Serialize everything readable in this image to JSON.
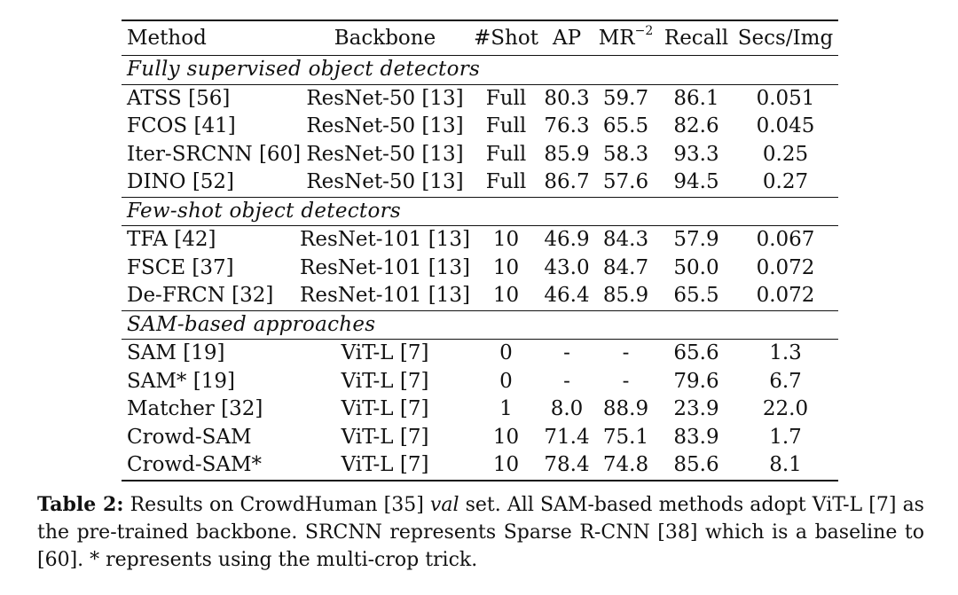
{
  "table": {
    "headers": {
      "method": "Method",
      "backbone": "Backbone",
      "shot": "#Shot",
      "ap": "AP",
      "mr_base": "MR",
      "mr_sup": "−2",
      "recall": "Recall",
      "secs": "Secs/Img"
    },
    "sections": [
      {
        "title": "Fully supervised object detectors",
        "rows": [
          {
            "method": "ATSS [56]",
            "backbone": "ResNet-50 [13]",
            "shot": "Full",
            "ap": "80.3",
            "mr": "59.7",
            "recall": "86.1",
            "secs": "0.051"
          },
          {
            "method": "FCOS [41]",
            "backbone": "ResNet-50 [13]",
            "shot": "Full",
            "ap": "76.3",
            "mr": "65.5",
            "recall": "82.6",
            "secs": "0.045"
          },
          {
            "method": "Iter-SRCNN [60]",
            "backbone": "ResNet-50 [13]",
            "shot": "Full",
            "ap": "85.9",
            "mr": "58.3",
            "recall": "93.3",
            "secs": "0.25"
          },
          {
            "method": "DINO [52]",
            "backbone": "ResNet-50 [13]",
            "shot": "Full",
            "ap": "86.7",
            "mr": "57.6",
            "recall": "94.5",
            "secs": "0.27"
          }
        ]
      },
      {
        "title": "Few-shot object detectors",
        "rows": [
          {
            "method": "TFA [42]",
            "backbone": "ResNet-101 [13]",
            "shot": "10",
            "ap": "46.9",
            "mr": "84.3",
            "recall": "57.9",
            "secs": "0.067"
          },
          {
            "method": "FSCE [37]",
            "backbone": "ResNet-101 [13]",
            "shot": "10",
            "ap": "43.0",
            "mr": "84.7",
            "recall": "50.0",
            "secs": "0.072"
          },
          {
            "method": "De-FRCN [32]",
            "backbone": "ResNet-101 [13]",
            "shot": "10",
            "ap": "46.4",
            "mr": "85.9",
            "recall": "65.5",
            "secs": "0.072"
          }
        ]
      },
      {
        "title": "SAM-based approaches",
        "rows": [
          {
            "method": "SAM [19]",
            "backbone": "ViT-L [7]",
            "shot": "0",
            "ap": "-",
            "mr": "-",
            "recall": "65.6",
            "secs": "1.3"
          },
          {
            "method": "SAM* [19]",
            "backbone": "ViT-L [7]",
            "shot": "0",
            "ap": "-",
            "mr": "-",
            "recall": "79.6",
            "secs": "6.7"
          },
          {
            "method": "Matcher [32]",
            "backbone": "ViT-L [7]",
            "shot": "1",
            "ap": "8.0",
            "mr": "88.9",
            "recall": "23.9",
            "secs": "22.0"
          },
          {
            "method": "Crowd-SAM",
            "backbone": "ViT-L [7]",
            "shot": "10",
            "ap": "71.4",
            "mr": "75.1",
            "recall": "83.9",
            "secs": "1.7"
          },
          {
            "method": "Crowd-SAM*",
            "backbone": "ViT-L [7]",
            "shot": "10",
            "ap": "78.4",
            "mr": "74.8",
            "recall": "85.6",
            "secs": "8.1"
          }
        ]
      }
    ]
  },
  "caption": {
    "label": "Table 2:",
    "text_before": " Results on CrowdHuman [35] ",
    "italic": "val",
    "text_after": " set. All SAM-based methods adopt ViT-L [7] as the pre-trained backbone. SRCNN represents Sparse R-CNN [38] which is a baseline to [60]. * represents using the multi-crop trick."
  }
}
